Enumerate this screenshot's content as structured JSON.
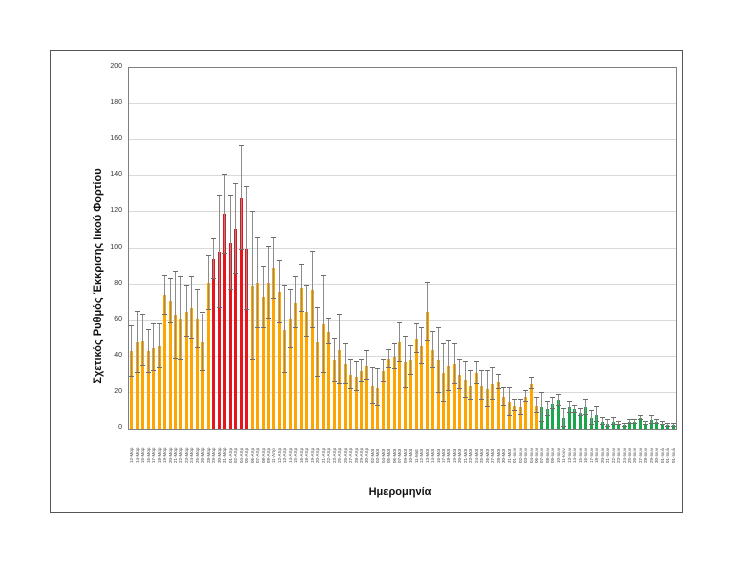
{
  "chart_data": {
    "type": "bar",
    "title": "",
    "xlabel": "Ημερομηνία",
    "ylabel": "Σχετικός Ρυθμός Έκκρισης Ιικού Φορτίου",
    "ylim": [
      0,
      200
    ],
    "yticks": [
      0,
      20,
      40,
      60,
      80,
      100,
      120,
      140,
      160,
      180,
      200
    ],
    "grid": true,
    "legend": null,
    "colors": {
      "orange": "#ffa500",
      "red": "#e8141c",
      "green": "#1aa64a",
      "error_bar": "#8c8c8c"
    },
    "categories": [
      "12-Μαρ",
      "14-Μαρ",
      "15-Μαρ",
      "16-Μαρ",
      "17-Μαρ",
      "18-Μαρ",
      "19-Μαρ",
      "20-Μαρ",
      "21-Μαρ",
      "22-Μαρ",
      "23-Μαρ",
      "24-Μαρ",
      "25-Μαρ",
      "26-Μαρ",
      "28-Μαρ",
      "29-Μαρ",
      "30-Μαρ",
      "31-Μαρ",
      "01-Απρ",
      "02-Απρ",
      "04-Απρ",
      "05-Απρ",
      "06-Απρ",
      "07-Απρ",
      "08-Απρ",
      "09-Απρ",
      "11-Απρ",
      "12-Απρ",
      "13-Απρ",
      "14-Απρ",
      "15-Απρ",
      "16-Απρ",
      "18-Απρ",
      "19-Απρ",
      "20-Απρ",
      "21-Απρ",
      "22-Απρ",
      "23-Απρ",
      "25-Απρ",
      "26-Απρ",
      "27-Απρ",
      "28-Απρ",
      "29-Απρ",
      "30-Απρ",
      "02-Μαϊ",
      "03-Μαϊ",
      "04-Μαϊ",
      "05-Μαϊ",
      "06-Μαϊ",
      "07-Μαϊ",
      "09-Μαϊ",
      "10-Μαϊ",
      "11-Μαϊ",
      "12-Μαϊ",
      "13-Μαϊ",
      "14-Μαϊ",
      "16-Μαϊ",
      "17-Μαϊ",
      "18-Μαϊ",
      "19-Μαϊ",
      "20-Μαϊ",
      "21-Μαϊ",
      "23-Μαϊ",
      "24-Μαϊ",
      "25-Μαϊ",
      "26-Μαϊ",
      "27-Μαϊ",
      "28-Μαϊ",
      "30-Μαϊ",
      "31-Μαϊ",
      "01-Ιουν",
      "02-Ιουν",
      "03-Ιουν",
      "04-Ιουν",
      "06-Ιουν",
      "07-Ιουν",
      "08-Ιουν",
      "09-Ιουν",
      "10-Ιουν",
      "11-Ιουν",
      "13-Ιουν",
      "14-Ιουν",
      "15-Ιουν",
      "16-Ιουν",
      "17-Ιουν",
      "18-Ιουν",
      "20-Ιουν",
      "21-Ιουν",
      "22-Ιουν",
      "23-Ιουν",
      "24-Ιουν",
      "25-Ιουν",
      "26-Ιουν",
      "27-Ιουν",
      "28-Ιουν",
      "29-Ιουν",
      "30-Ιουν",
      "01-Ιουλ",
      "01-Ιουλ",
      "01-Ιουλ"
    ],
    "values": [
      43,
      48,
      49,
      43,
      45,
      46,
      74,
      71,
      63,
      61,
      65,
      67,
      61,
      48,
      81,
      94,
      98,
      119,
      103,
      111,
      128,
      100,
      79,
      81,
      73,
      81,
      89,
      76,
      55,
      61,
      70,
      78,
      65,
      77,
      48,
      58,
      54,
      38,
      44,
      36,
      30,
      29,
      32,
      35,
      24,
      23,
      32,
      39,
      40,
      48,
      37,
      38,
      50,
      46,
      65,
      44,
      38,
      31,
      35,
      36,
      30,
      27,
      24,
      31,
      24,
      22,
      25,
      26,
      18,
      15,
      13,
      12,
      18,
      25,
      13,
      12,
      11,
      14,
      16,
      6,
      12,
      11,
      9,
      12,
      6,
      8,
      4,
      3,
      4,
      3,
      2,
      4,
      4,
      6,
      3,
      5,
      4,
      3,
      2,
      2
    ],
    "errors": [
      14,
      17,
      14,
      12,
      13,
      12,
      11,
      12,
      24,
      23,
      14,
      17,
      16,
      16,
      15,
      11,
      31,
      22,
      26,
      25,
      29,
      34,
      41,
      25,
      17,
      20,
      17,
      17,
      24,
      16,
      14,
      13,
      14,
      21,
      19,
      27,
      7,
      12,
      19,
      11,
      8,
      8,
      6,
      8,
      10,
      10,
      6,
      5,
      7,
      11,
      14,
      8,
      8,
      10,
      16,
      10,
      18,
      16,
      14,
      11,
      8,
      10,
      8,
      6,
      8,
      10,
      9,
      4,
      5,
      8,
      3,
      4,
      3,
      3,
      4,
      8,
      4,
      3,
      3,
      5,
      3,
      2,
      2,
      4,
      4,
      4,
      2,
      2,
      2,
      1,
      1,
      1,
      1,
      1,
      1,
      2,
      1,
      1,
      1,
      1
    ],
    "bar_colors": [
      "orange",
      "orange",
      "orange",
      "orange",
      "orange",
      "orange",
      "orange",
      "orange",
      "orange",
      "orange",
      "orange",
      "orange",
      "orange",
      "orange",
      "orange",
      "red",
      "red",
      "red",
      "red",
      "red",
      "red",
      "red",
      "orange",
      "orange",
      "orange",
      "orange",
      "orange",
      "orange",
      "orange",
      "orange",
      "orange",
      "orange",
      "orange",
      "orange",
      "orange",
      "orange",
      "orange",
      "orange",
      "orange",
      "orange",
      "orange",
      "orange",
      "orange",
      "orange",
      "orange",
      "orange",
      "orange",
      "orange",
      "orange",
      "orange",
      "orange",
      "orange",
      "orange",
      "orange",
      "orange",
      "orange",
      "orange",
      "orange",
      "orange",
      "orange",
      "orange",
      "orange",
      "orange",
      "orange",
      "orange",
      "orange",
      "orange",
      "orange",
      "orange",
      "orange",
      "orange",
      "orange",
      "orange",
      "orange",
      "orange",
      "green",
      "green",
      "green",
      "green",
      "green",
      "green",
      "green",
      "green",
      "green",
      "green",
      "green",
      "green",
      "green",
      "green",
      "green",
      "green",
      "green",
      "green",
      "green",
      "green",
      "green",
      "green",
      "green",
      "green",
      "green"
    ]
  }
}
